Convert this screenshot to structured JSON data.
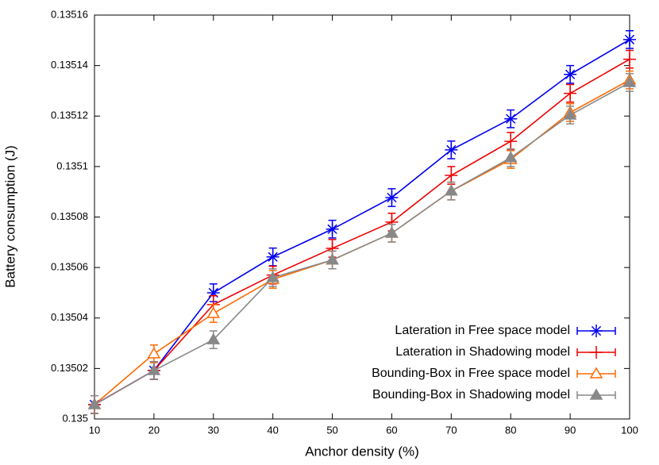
{
  "chart_data": {
    "type": "line",
    "x_label": "Anchor density (%)",
    "y_label": "Battery consumption (J)",
    "x": [
      10,
      20,
      30,
      40,
      50,
      60,
      70,
      80,
      90,
      100
    ],
    "xlim": [
      10,
      100
    ],
    "xticks": [
      10,
      20,
      30,
      40,
      50,
      60,
      70,
      80,
      90,
      100
    ],
    "ylim": [
      0.135,
      0.13516
    ],
    "yticks": [
      0.135,
      0.13502,
      0.13504,
      0.13506,
      0.13508,
      0.1351,
      0.13512,
      0.13514,
      0.13516
    ],
    "legend": "lower right",
    "series": [
      {
        "name": "Lateration in Free space model",
        "color": "#0000ee",
        "marker": "star",
        "values": [
          0.1350057,
          0.1350192,
          0.13505,
          0.1350642,
          0.1350752,
          0.1350877,
          0.1351066,
          0.1351189,
          0.1351365,
          0.1351503
        ],
        "errors": [
          3.5e-06,
          3.5e-06,
          3.5e-06,
          3.5e-06,
          3.5e-06,
          3.5e-06,
          3.5e-06,
          3.5e-06,
          3.5e-06,
          3.5e-06
        ]
      },
      {
        "name": "Lateration in Shadowing model",
        "color": "#ee0000",
        "marker": "plus",
        "values": [
          0.1350057,
          0.1350192,
          0.1350453,
          0.135057,
          0.1350676,
          0.135078,
          0.1350965,
          0.13511,
          0.135129,
          0.1351425
        ],
        "errors": [
          3.5e-06,
          3.5e-06,
          3.5e-06,
          3.5e-06,
          3.5e-06,
          3.5e-06,
          3.5e-06,
          3.5e-06,
          3.5e-06,
          3.5e-06
        ]
      },
      {
        "name": "Bounding-Box in Free space model",
        "color": "#ff6a00",
        "marker": "triangle-open",
        "values": [
          0.1350057,
          0.1350258,
          0.1350418,
          0.1350553,
          0.135063,
          0.1350736,
          0.1350903,
          0.1351028,
          0.1351214,
          0.1351343
        ],
        "errors": [
          3.5e-06,
          3.5e-06,
          3.5e-06,
          3.5e-06,
          3.5e-06,
          3.5e-06,
          3.5e-06,
          3.5e-06,
          3.5e-06,
          3.5e-06
        ]
      },
      {
        "name": "Bounding-Box in Shadowing model",
        "color": "#888888",
        "marker": "triangle",
        "values": [
          0.1350057,
          0.1350192,
          0.1350314,
          0.135056,
          0.135063,
          0.1350736,
          0.1350903,
          0.1351035,
          0.1351204,
          0.1351333
        ],
        "errors": [
          3.5e-06,
          3.5e-06,
          3.5e-06,
          3.5e-06,
          3.5e-06,
          3.5e-06,
          3.5e-06,
          3.5e-06,
          3.5e-06,
          3.5e-06
        ]
      }
    ]
  }
}
